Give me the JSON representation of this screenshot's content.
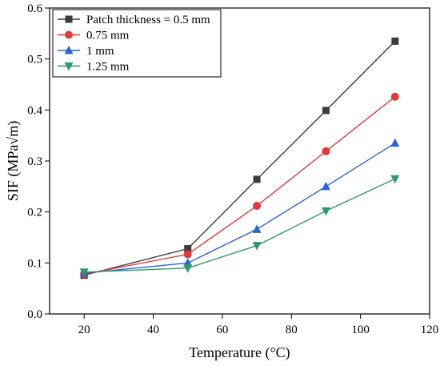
{
  "chart_data": {
    "type": "line",
    "xlabel": "Temperature (°C)",
    "ylabel": "SIF (MPa√m)",
    "xlim": [
      10,
      120
    ],
    "ylim": [
      0.0,
      0.6
    ],
    "xticks": [
      20,
      40,
      60,
      80,
      100,
      120
    ],
    "yticks": [
      0.0,
      0.1,
      0.2,
      0.3,
      0.4,
      0.5,
      0.6
    ],
    "xtick_labels": [
      "20",
      "40",
      "60",
      "80",
      "100",
      "120"
    ],
    "ytick_labels": [
      "0.0",
      "0.1",
      "0.2",
      "0.3",
      "0.4",
      "0.5",
      "0.6"
    ],
    "legend_position": "top-left",
    "grid": false,
    "x": [
      20,
      50,
      70,
      90,
      110
    ],
    "series": [
      {
        "name": "Patch thickness = 0.5 mm",
        "values": [
          0.076,
          0.128,
          0.264,
          0.399,
          0.535
        ],
        "color": "#3b3b3b",
        "marker": "square"
      },
      {
        "name": "0.75 mm",
        "values": [
          0.078,
          0.117,
          0.212,
          0.319,
          0.426
        ],
        "color": "#e03a3a",
        "marker": "circle"
      },
      {
        "name": "1 mm",
        "values": [
          0.08,
          0.1,
          0.166,
          0.25,
          0.335
        ],
        "color": "#2b62d9",
        "marker": "triangle-up"
      },
      {
        "name": "1.25 mm",
        "values": [
          0.082,
          0.09,
          0.134,
          0.202,
          0.265
        ],
        "color": "#2e9a6a",
        "marker": "triangle-down"
      }
    ]
  }
}
